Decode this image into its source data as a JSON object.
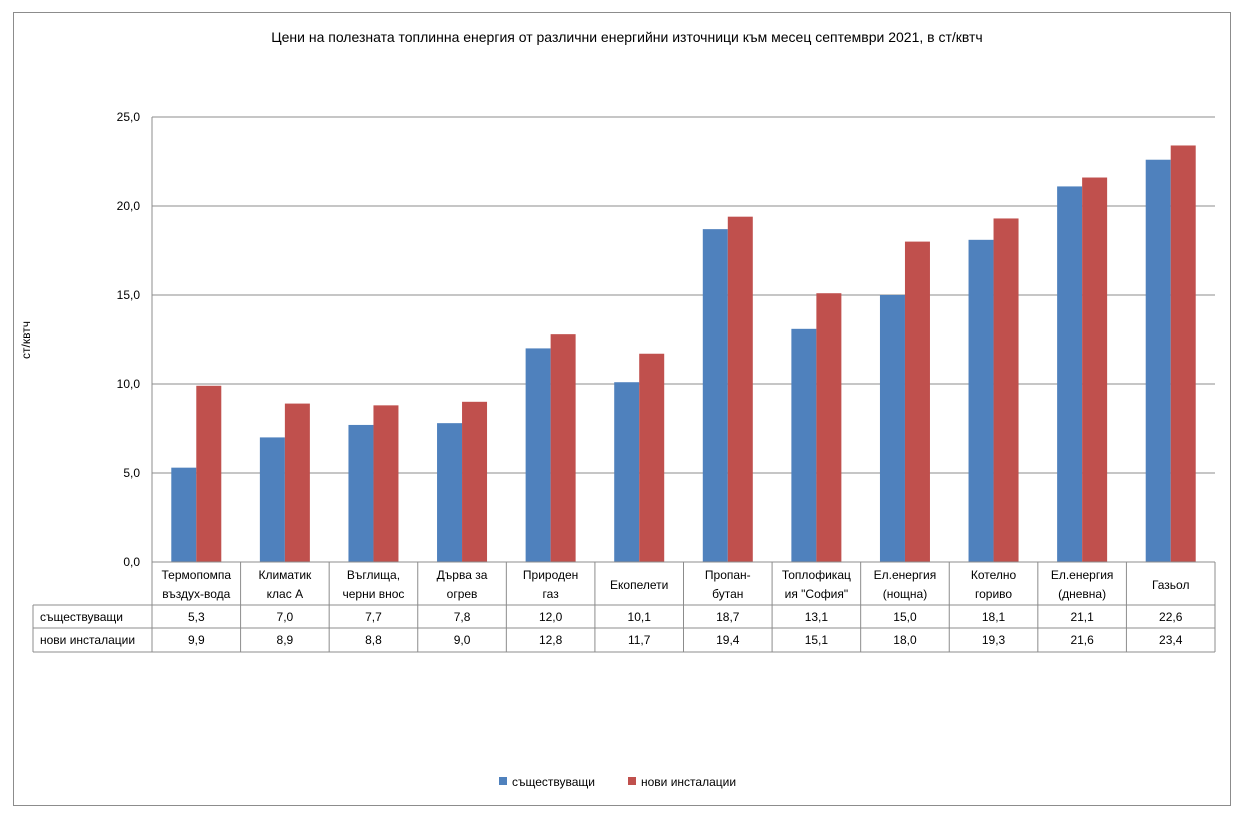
{
  "chart_data": {
    "type": "bar",
    "title": "Цени на полезната топлинна енергия от различни енергийни източници  към месец септември 2021, в ст/квтч",
    "ylabel": "ст/квтч",
    "ylim": [
      0,
      25
    ],
    "yticks": [
      "0,0",
      "5,0",
      "10,0",
      "15,0",
      "20,0",
      "25,0"
    ],
    "grid": true,
    "legend_position": "bottom",
    "data_table": true,
    "categories": [
      [
        "Термопомпа",
        "въздух-вода"
      ],
      [
        "Климатик",
        "клас А"
      ],
      [
        "Въглища,",
        "черни внос"
      ],
      [
        "Дърва за",
        "огрев"
      ],
      [
        "Природен",
        "газ"
      ],
      [
        "Екопелети"
      ],
      [
        "Пропан-",
        "бутан"
      ],
      [
        "Топлофикац",
        "ия \"София\""
      ],
      [
        "Ел.енергия",
        "(нощна)"
      ],
      [
        "Котелно",
        "гориво"
      ],
      [
        "Ел.енергия",
        "(дневна)"
      ],
      [
        "Газьол"
      ]
    ],
    "series": [
      {
        "name": "съществуващи",
        "color": "#4f81bd",
        "values": [
          5.3,
          7.0,
          7.7,
          7.8,
          12.0,
          10.1,
          18.7,
          13.1,
          15.0,
          18.1,
          21.1,
          22.6
        ],
        "labels": [
          "5,3",
          "7,0",
          "7,7",
          "7,8",
          "12,0",
          "10,1",
          "18,7",
          "13,1",
          "15,0",
          "18,1",
          "21,1",
          "22,6"
        ]
      },
      {
        "name": "нови инсталации",
        "color": "#c0504d",
        "values": [
          9.9,
          8.9,
          8.8,
          9.0,
          12.8,
          11.7,
          19.4,
          15.1,
          18.0,
          19.3,
          21.6,
          23.4
        ],
        "labels": [
          "9,9",
          "8,9",
          "8,8",
          "9,0",
          "12,8",
          "11,7",
          "19,4",
          "15,1",
          "18,0",
          "19,3",
          "21,6",
          "23,4"
        ]
      }
    ]
  }
}
